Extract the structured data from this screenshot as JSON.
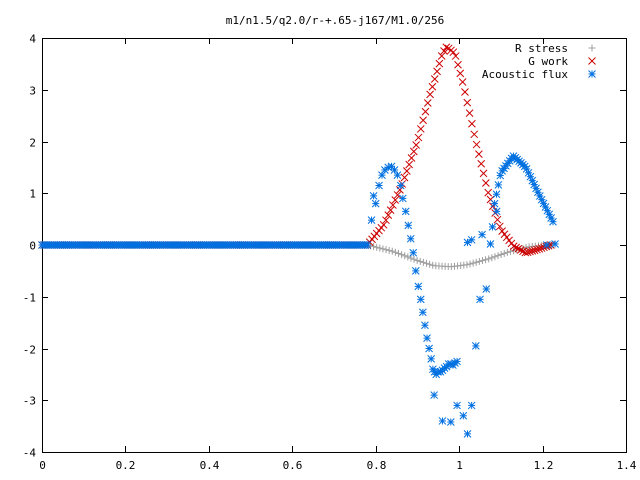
{
  "chart_data": {
    "type": "scatter",
    "title": "m1/n1.5/q2.0/r-+.65-j167/M1.0/256",
    "xlabel": "",
    "ylabel": "",
    "xlim": [
      0,
      1.4
    ],
    "ylim": [
      -4,
      4
    ],
    "x_ticks": [
      "0",
      "0.2",
      "0.4",
      "0.6",
      "0.8",
      "1",
      "1.2",
      "1.4"
    ],
    "y_ticks": [
      "-4",
      "-3",
      "-2",
      "-1",
      "0",
      "1",
      "2",
      "3",
      "4"
    ],
    "grid": false,
    "legend": "top-right",
    "series": [
      {
        "name": "R stress",
        "marker": "plus",
        "color": "#a0a0a0",
        "segments": [
          {
            "x0": 0.0,
            "x1": 0.78,
            "n": 160,
            "points": [
              [
                0.0,
                0.0
              ],
              [
                0.78,
                0.0
              ]
            ]
          },
          {
            "x0": 0.78,
            "x1": 1.22,
            "n": 60,
            "points": [
              [
                0.78,
                0.0
              ],
              [
                0.84,
                -0.12
              ],
              [
                0.9,
                -0.3
              ],
              [
                0.94,
                -0.4
              ],
              [
                0.98,
                -0.42
              ],
              [
                1.02,
                -0.38
              ],
              [
                1.07,
                -0.27
              ],
              [
                1.12,
                -0.13
              ],
              [
                1.17,
                -0.03
              ],
              [
                1.22,
                0.0
              ]
            ]
          }
        ]
      },
      {
        "name": "G work",
        "marker": "cross",
        "color": "#cc0000",
        "segments": [
          {
            "x0": 0.0,
            "x1": 0.78,
            "n": 160,
            "points": [
              [
                0.0,
                0.0
              ],
              [
                0.78,
                0.0
              ]
            ]
          },
          {
            "x0": 0.78,
            "x1": 1.22,
            "n": 80,
            "points": [
              [
                0.78,
                0.0
              ],
              [
                0.82,
                0.4
              ],
              [
                0.86,
                1.1
              ],
              [
                0.9,
                2.0
              ],
              [
                0.93,
                2.9
              ],
              [
                0.96,
                3.7
              ],
              [
                0.97,
                3.83
              ],
              [
                0.99,
                3.7
              ],
              [
                1.01,
                3.1
              ],
              [
                1.04,
                2.0
              ],
              [
                1.07,
                1.0
              ],
              [
                1.1,
                0.3
              ],
              [
                1.13,
                -0.02
              ],
              [
                1.16,
                -0.15
              ],
              [
                1.19,
                -0.08
              ],
              [
                1.22,
                0.0
              ]
            ]
          }
        ]
      },
      {
        "name": "Acoustic flux",
        "marker": "star",
        "color": "#0070e0",
        "segments": [
          {
            "x0": 0.0,
            "x1": 0.78,
            "n": 160,
            "points": [
              [
                0.0,
                0.0
              ],
              [
                0.78,
                0.0
              ]
            ]
          },
          {
            "x0": 1.085,
            "x1": 1.225,
            "n": 32,
            "points": [
              [
                1.085,
                0.8
              ],
              [
                1.1,
                1.4
              ],
              [
                1.13,
                1.72
              ],
              [
                1.16,
                1.5
              ],
              [
                1.19,
                1.0
              ],
              [
                1.225,
                0.45
              ]
            ]
          }
        ],
        "points": [
          [
            0.79,
            0.48
          ],
          [
            0.795,
            0.95
          ],
          [
            0.8,
            0.8
          ],
          [
            0.808,
            1.15
          ],
          [
            0.815,
            1.35
          ],
          [
            0.822,
            1.45
          ],
          [
            0.83,
            1.5
          ],
          [
            0.838,
            1.52
          ],
          [
            0.845,
            1.45
          ],
          [
            0.852,
            1.35
          ],
          [
            0.86,
            1.15
          ],
          [
            0.865,
            0.9
          ],
          [
            0.872,
            0.65
          ],
          [
            0.878,
            0.38
          ],
          [
            0.884,
            0.12
          ],
          [
            0.89,
            -0.15
          ],
          [
            0.896,
            -0.5
          ],
          [
            0.902,
            -0.8
          ],
          [
            0.908,
            -1.05
          ],
          [
            0.913,
            -1.3
          ],
          [
            0.918,
            -1.55
          ],
          [
            0.923,
            -1.8
          ],
          [
            0.928,
            -2.0
          ],
          [
            0.933,
            -2.2
          ],
          [
            0.937,
            -2.4
          ],
          [
            0.941,
            -2.45
          ],
          [
            0.945,
            -2.5
          ],
          [
            0.95,
            -2.45
          ],
          [
            0.955,
            -2.45
          ],
          [
            0.96,
            -2.42
          ],
          [
            0.965,
            -2.38
          ],
          [
            0.97,
            -2.35
          ],
          [
            0.975,
            -2.3
          ],
          [
            0.98,
            -2.3
          ],
          [
            0.985,
            -2.32
          ],
          [
            0.99,
            -2.28
          ],
          [
            0.995,
            -2.25
          ],
          [
            0.94,
            -2.9
          ],
          [
            0.96,
            -3.4
          ],
          [
            0.98,
            -3.42
          ],
          [
            0.995,
            -3.1
          ],
          [
            1.01,
            -3.3
          ],
          [
            1.02,
            -3.65
          ],
          [
            1.03,
            -3.1
          ],
          [
            1.04,
            -1.95
          ],
          [
            1.05,
            -1.05
          ],
          [
            1.065,
            -0.85
          ],
          [
            1.02,
            0.05
          ],
          [
            1.03,
            0.1
          ],
          [
            1.055,
            0.2
          ],
          [
            1.075,
            0.02
          ],
          [
            1.08,
            0.35
          ],
          [
            1.09,
            0.65
          ],
          [
            1.21,
            0.0
          ],
          [
            1.23,
            0.02
          ]
        ]
      }
    ]
  }
}
